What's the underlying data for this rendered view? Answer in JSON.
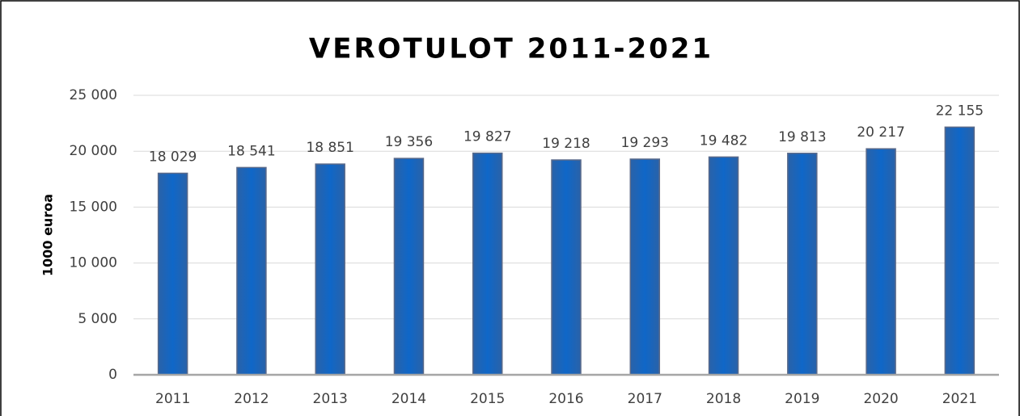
{
  "chart_data": {
    "type": "bar",
    "title": "VEROTULOT 2011-2021",
    "y_label": "1000 euroa",
    "categories": [
      "2011",
      "2012",
      "2013",
      "2014",
      "2015",
      "2016",
      "2017",
      "2018",
      "2019",
      "2020",
      "2021"
    ],
    "values": [
      18029,
      18541,
      18851,
      19356,
      19827,
      19218,
      19293,
      19482,
      19813,
      20217,
      22155
    ],
    "value_labels": [
      "18 029",
      "18 541",
      "18 851",
      "19 356",
      "19 827",
      "19 218",
      "19 293",
      "19 482",
      "19 813",
      "20 217",
      "22 155"
    ],
    "color": "#1f5fae",
    "ylim": [
      0,
      25000
    ],
    "yticks": [
      0,
      {
        "value": 5000,
        "label": "5 000"
      },
      {
        "value": 10000,
        "label": "10 000"
      },
      {
        "value": 15000,
        "label": "15 000"
      },
      {
        "value": 20000,
        "label": "20 000"
      },
      {
        "value": 25000,
        "label": "25 000"
      }
    ],
    "grid": true
  }
}
